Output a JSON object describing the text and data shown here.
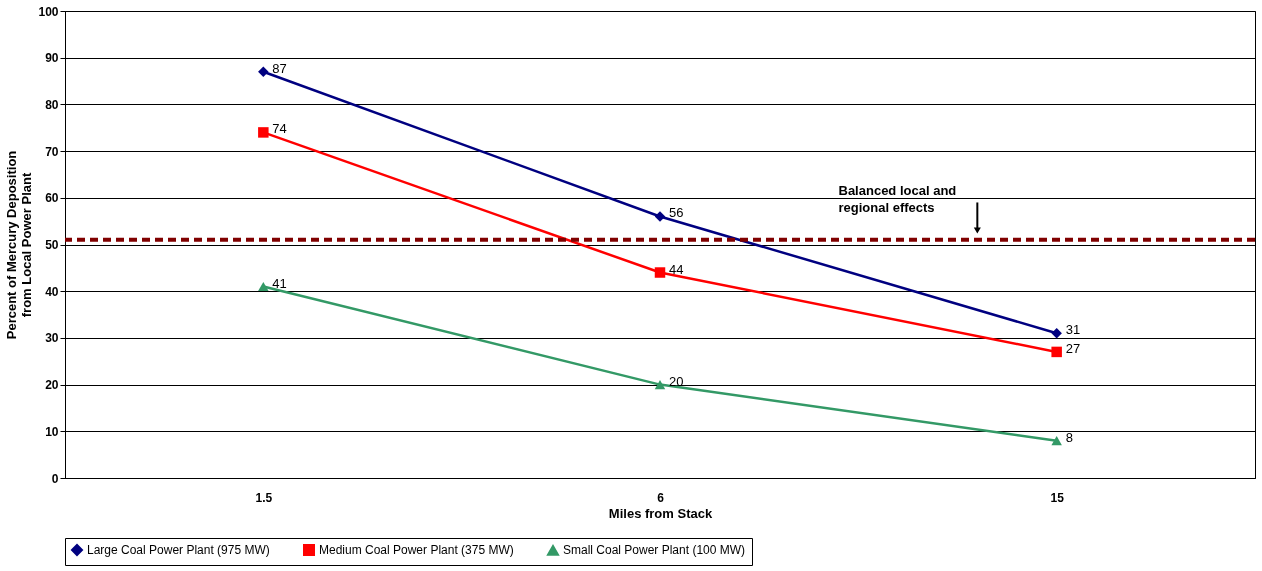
{
  "chart_data": {
    "type": "line",
    "xlabel": "Miles from Stack",
    "ylabel": "Percent of Mercury Deposition\nfrom Local Power Plant",
    "categories": [
      "1.5",
      "6",
      "15"
    ],
    "series": [
      {
        "name": "Large Coal Power Plant (975 MW)",
        "color": "#000080",
        "marker": "diamond",
        "values": [
          87,
          56,
          31
        ]
      },
      {
        "name": "Medium Coal Power Plant (375 MW)",
        "color": "#ff0000",
        "marker": "square",
        "values": [
          74,
          44,
          27
        ]
      },
      {
        "name": "Small Coal Power Plant (100 MW)",
        "color": "#339966",
        "marker": "triangle",
        "values": [
          41,
          20,
          8
        ]
      }
    ],
    "ylim": [
      0,
      100
    ],
    "yticks": [
      0,
      10,
      20,
      30,
      40,
      50,
      60,
      70,
      80,
      90,
      100
    ],
    "grid": "y",
    "legend": "bottom",
    "data_labels": true,
    "line_style": "solid",
    "ref_lines": [
      {
        "axis": "y",
        "value": 51,
        "label": "Balanced local and\nregional effects",
        "color": "#800000",
        "line_style": "dashed"
      }
    ]
  }
}
